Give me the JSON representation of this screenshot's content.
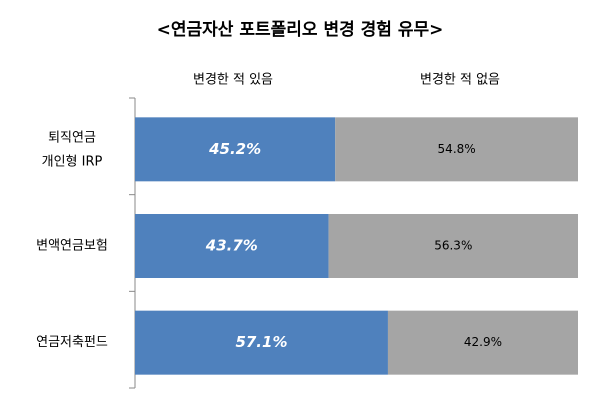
{
  "chart_data": {
    "type": "stacked-bar-horizontal-100",
    "title": "<연금자산 포트폴리오 변경 경험 유무>",
    "categories": [
      "퇴직연금\n개인형 IRP",
      "변액연금보험",
      "연금저축펀드"
    ],
    "series": [
      {
        "name": "변경한 적 있음",
        "color": "#4f81bd",
        "values": [
          45.2,
          43.7,
          57.1
        ],
        "value_labels": [
          "45.2%",
          "43.7%",
          "57.1%"
        ]
      },
      {
        "name": "변경한 적 없음",
        "color": "#a5a5a5",
        "values": [
          54.8,
          56.3,
          42.9
        ],
        "value_labels": [
          "54.8%",
          "56.3%",
          "42.9%"
        ]
      }
    ]
  }
}
